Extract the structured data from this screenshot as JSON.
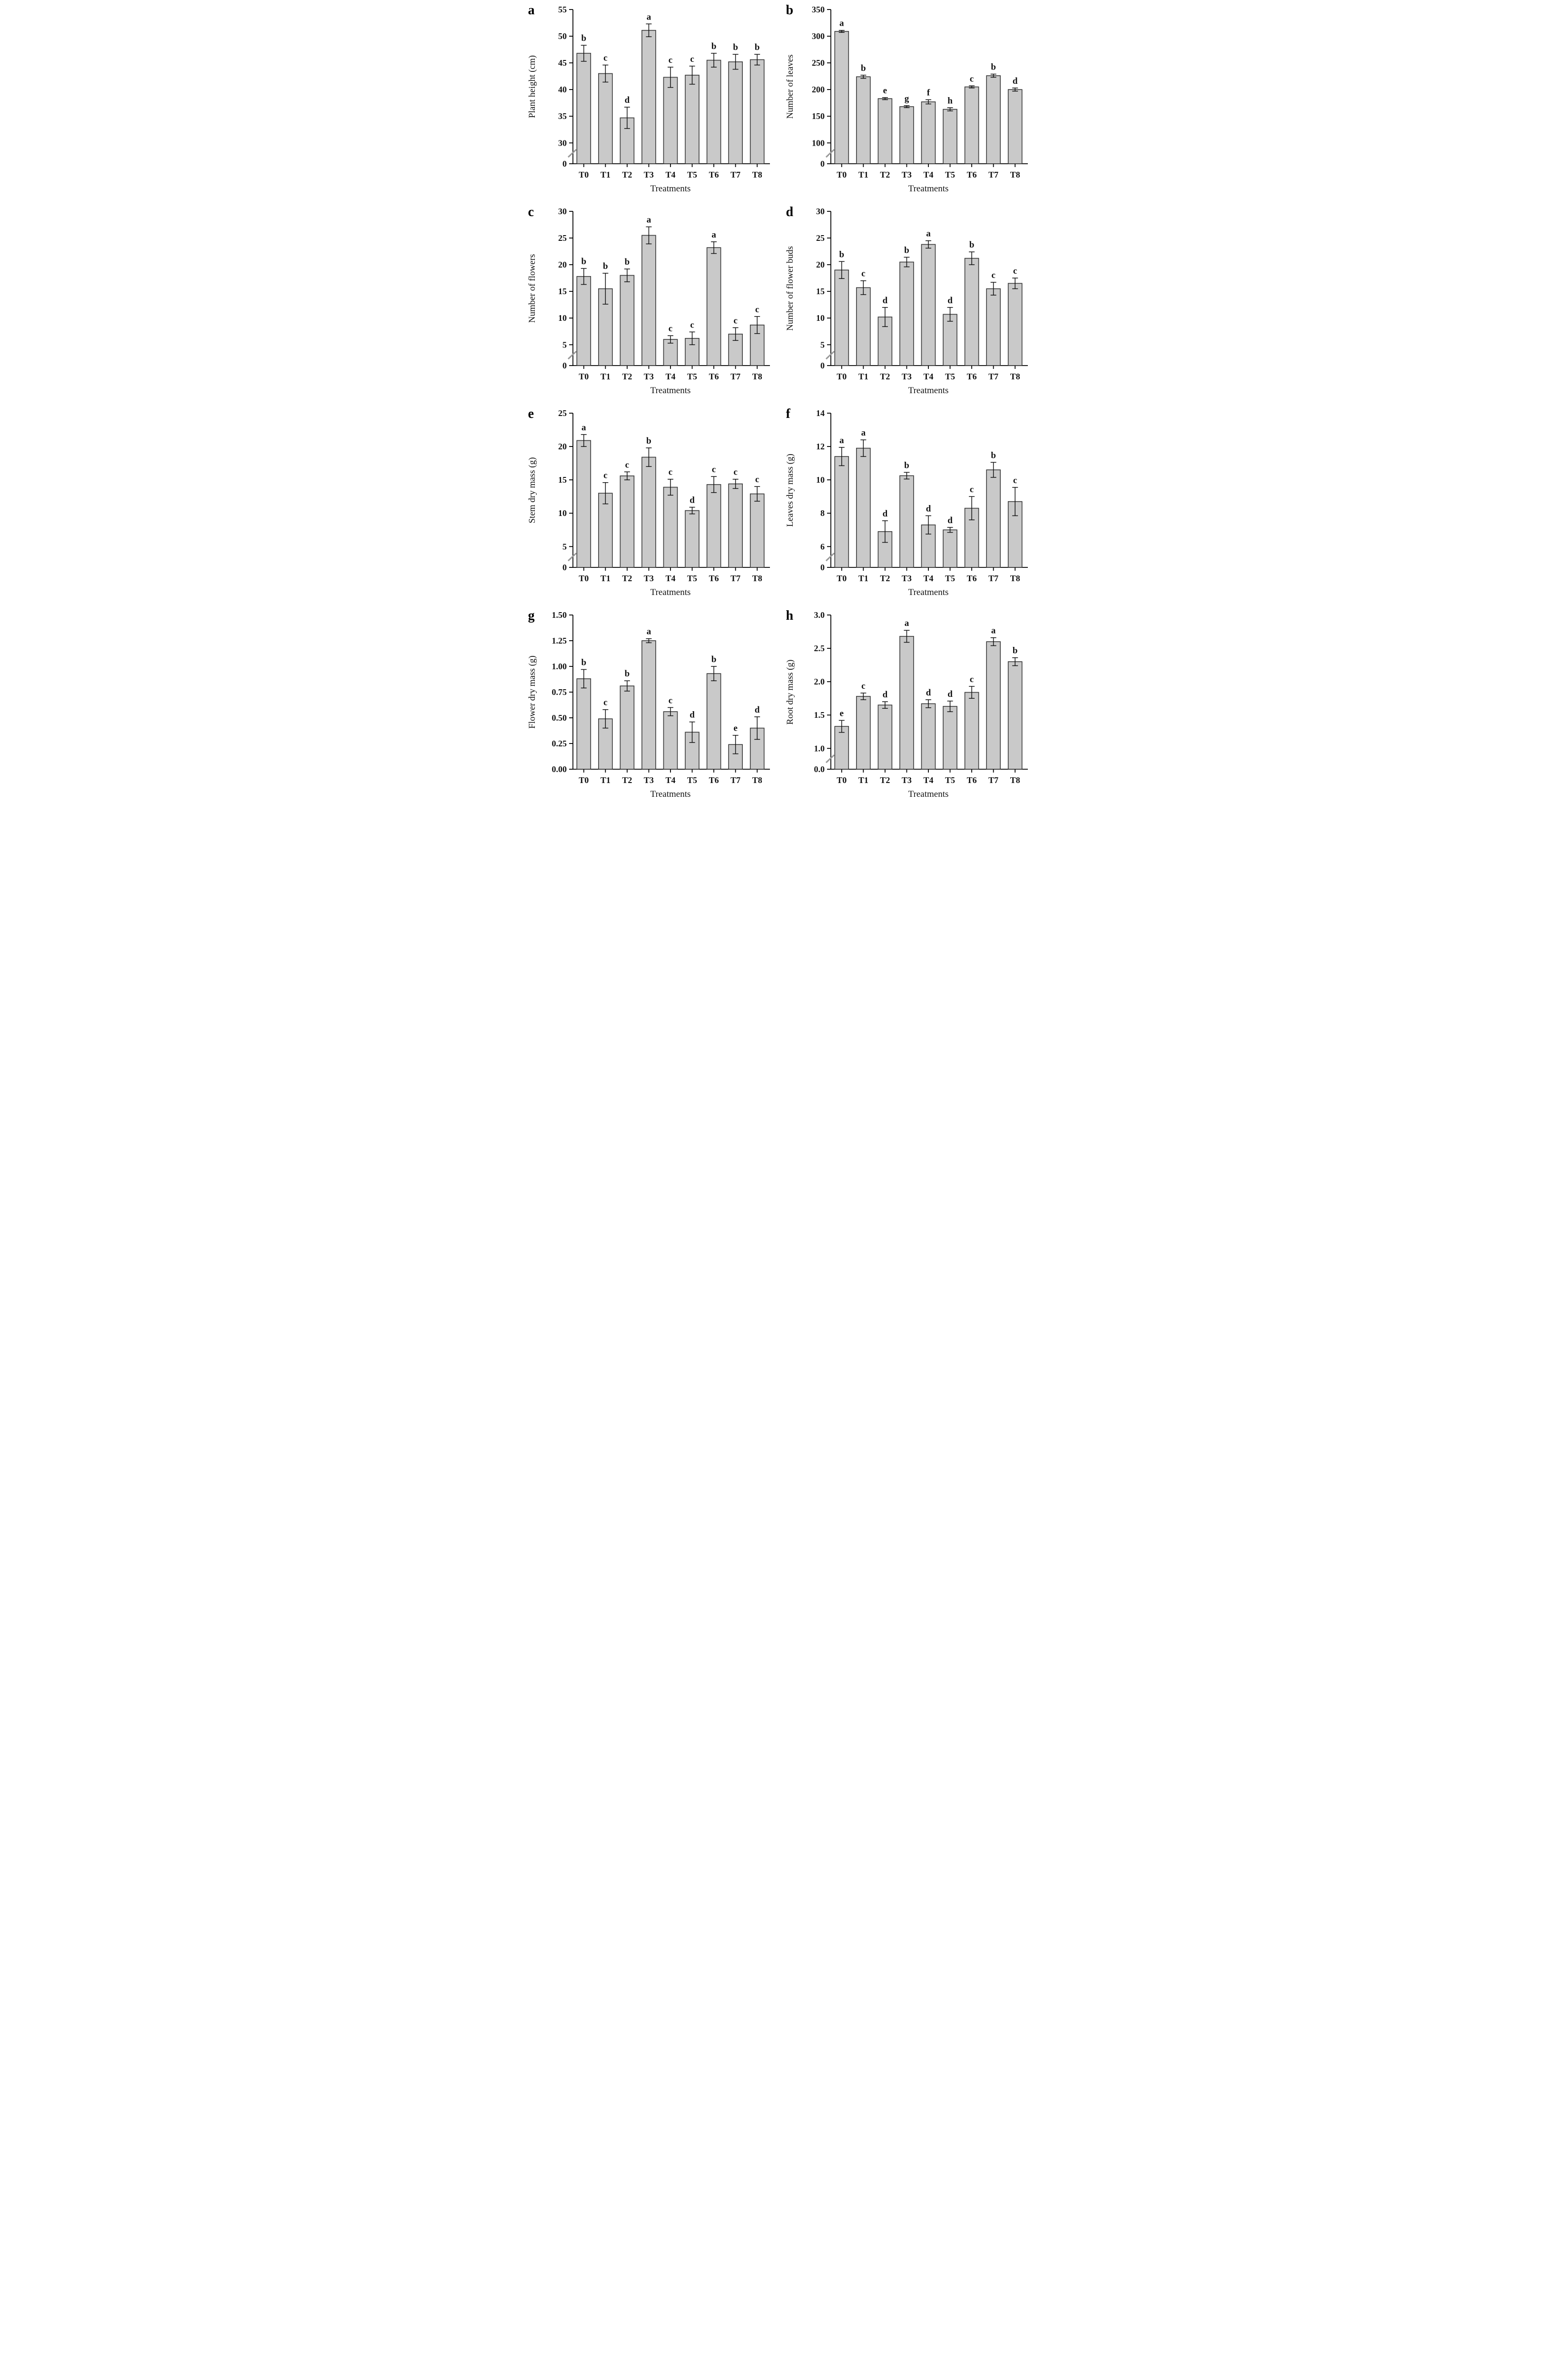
{
  "figure": {
    "background": "#ffffff",
    "bar_fill": "#c9c9c9",
    "bar_stroke": "#3a3a3a",
    "axis_color": "#000000",
    "break_mark_color": "#9a9a9a",
    "xlabel": "Treatments",
    "categories": [
      "T0",
      "T1",
      "T2",
      "T3",
      "T4",
      "T5",
      "T6",
      "T7",
      "T8"
    ]
  },
  "chart_data": [
    {
      "type": "bar",
      "panel_label": "a",
      "title": "",
      "ylabel": "Plant height (cm)",
      "xlabel": "Treatments",
      "categories": [
        "T0",
        "T1",
        "T2",
        "T3",
        "T4",
        "T5",
        "T6",
        "T7",
        "T8"
      ],
      "values": [
        46.8,
        43.0,
        34.7,
        51.1,
        42.3,
        42.7,
        45.5,
        45.2,
        45.6
      ],
      "errors": [
        1.5,
        1.6,
        2.0,
        1.2,
        1.9,
        1.7,
        1.3,
        1.4,
        1.0
      ],
      "sig_letters": [
        "b",
        "c",
        "d",
        "a",
        "c",
        "c",
        "b",
        "b",
        "b"
      ],
      "y_ticks": [
        0,
        30,
        35,
        40,
        45,
        50,
        55
      ],
      "y_tick_labels": [
        "0",
        "30",
        "35",
        "40",
        "45",
        "50",
        "55"
      ],
      "ylim": [
        0,
        55
      ],
      "axis_break": true,
      "grid": false,
      "legend": "none"
    },
    {
      "type": "bar",
      "panel_label": "b",
      "title": "",
      "ylabel": "Number of leaves",
      "xlabel": "Treatments",
      "categories": [
        "T0",
        "T1",
        "T2",
        "T3",
        "T4",
        "T5",
        "T6",
        "T7",
        "T8"
      ],
      "values": [
        309,
        224,
        183,
        168,
        177,
        163,
        205,
        226,
        200
      ],
      "errors": [
        2,
        3,
        2,
        2,
        4,
        3,
        2,
        3,
        3
      ],
      "sig_letters": [
        "a",
        "b",
        "e",
        "g",
        "f",
        "h",
        "c",
        "b",
        "d"
      ],
      "y_ticks": [
        0,
        100,
        150,
        200,
        250,
        300,
        350
      ],
      "y_tick_labels": [
        "0",
        "100",
        "150",
        "200",
        "250",
        "300",
        "350"
      ],
      "ylim": [
        0,
        350
      ],
      "axis_break": true,
      "grid": false,
      "legend": "none"
    },
    {
      "type": "bar",
      "panel_label": "c",
      "title": "",
      "ylabel": "Number of flowers",
      "xlabel": "Treatments",
      "categories": [
        "T0",
        "T1",
        "T2",
        "T3",
        "T4",
        "T5",
        "T6",
        "T7",
        "T8"
      ],
      "values": [
        17.8,
        15.5,
        18.0,
        25.5,
        6.0,
        6.2,
        23.2,
        7.0,
        8.7
      ],
      "errors": [
        1.5,
        2.9,
        1.2,
        1.6,
        0.7,
        1.2,
        1.1,
        1.2,
        1.6
      ],
      "sig_letters": [
        "b",
        "b",
        "b",
        "a",
        "c",
        "c",
        "a",
        "c",
        "c"
      ],
      "y_ticks": [
        0,
        5,
        10,
        15,
        20,
        25,
        30
      ],
      "y_tick_labels": [
        "0",
        "5",
        "10",
        "15",
        "20",
        "25",
        "30"
      ],
      "ylim": [
        0,
        30
      ],
      "axis_break": true,
      "grid": false,
      "legend": "none"
    },
    {
      "type": "bar",
      "panel_label": "d",
      "title": "",
      "ylabel": "Number of flower buds",
      "xlabel": "Treatments",
      "categories": [
        "T0",
        "T1",
        "T2",
        "T3",
        "T4",
        "T5",
        "T6",
        "T7",
        "T8"
      ],
      "values": [
        19.0,
        15.7,
        10.2,
        20.5,
        23.8,
        10.7,
        21.2,
        15.5,
        16.5
      ],
      "errors": [
        1.6,
        1.3,
        1.8,
        0.9,
        0.7,
        1.3,
        1.2,
        1.2,
        1.0
      ],
      "sig_letters": [
        "b",
        "c",
        "d",
        "b",
        "a",
        "d",
        "b",
        "c",
        "c"
      ],
      "y_ticks": [
        0,
        5,
        10,
        15,
        20,
        25,
        30
      ],
      "y_tick_labels": [
        "0",
        "5",
        "10",
        "15",
        "20",
        "25",
        "30"
      ],
      "ylim": [
        0,
        30
      ],
      "axis_break": true,
      "grid": false,
      "legend": "none"
    },
    {
      "type": "bar",
      "panel_label": "e",
      "title": "",
      "ylabel": "Stem dry mass (g)",
      "xlabel": "Treatments",
      "categories": [
        "T0",
        "T1",
        "T2",
        "T3",
        "T4",
        "T5",
        "T6",
        "T7",
        "T8"
      ],
      "values": [
        20.9,
        13.0,
        15.6,
        18.4,
        13.9,
        10.4,
        14.3,
        14.4,
        12.9
      ],
      "errors": [
        0.9,
        1.6,
        0.6,
        1.4,
        1.2,
        0.5,
        1.2,
        0.7,
        1.1
      ],
      "sig_letters": [
        "a",
        "c",
        "c",
        "b",
        "c",
        "d",
        "c",
        "c",
        "c"
      ],
      "y_ticks": [
        0,
        5,
        10,
        15,
        20,
        25
      ],
      "y_tick_labels": [
        "0",
        "5",
        "10",
        "15",
        "20",
        "25"
      ],
      "ylim": [
        0,
        25
      ],
      "axis_break": true,
      "grid": false,
      "legend": "none"
    },
    {
      "type": "bar",
      "panel_label": "f",
      "title": "",
      "ylabel": "Leaves dry mass (g)",
      "xlabel": "Treatments",
      "categories": [
        "T0",
        "T1",
        "T2",
        "T3",
        "T4",
        "T5",
        "T6",
        "T7",
        "T8"
      ],
      "values": [
        11.4,
        11.9,
        6.9,
        10.25,
        7.3,
        7.0,
        8.3,
        10.6,
        8.7
      ],
      "errors": [
        0.55,
        0.5,
        0.65,
        0.2,
        0.55,
        0.15,
        0.7,
        0.45,
        0.85
      ],
      "sig_letters": [
        "a",
        "a",
        "d",
        "b",
        "d",
        "d",
        "c",
        "b",
        "c"
      ],
      "y_ticks": [
        0,
        6,
        8,
        10,
        12,
        14
      ],
      "y_tick_labels": [
        "0",
        "6",
        "8",
        "10",
        "12",
        "14"
      ],
      "ylim": [
        0,
        14
      ],
      "axis_break": true,
      "grid": false,
      "legend": "none"
    },
    {
      "type": "bar",
      "panel_label": "g",
      "title": "",
      "ylabel": "Flower dry mass (g)",
      "xlabel": "Treatments",
      "categories": [
        "T0",
        "T1",
        "T2",
        "T3",
        "T4",
        "T5",
        "T6",
        "T7",
        "T8"
      ],
      "values": [
        0.88,
        0.49,
        0.81,
        1.25,
        0.56,
        0.36,
        0.93,
        0.24,
        0.4
      ],
      "errors": [
        0.09,
        0.09,
        0.05,
        0.02,
        0.04,
        0.1,
        0.07,
        0.09,
        0.11
      ],
      "sig_letters": [
        "b",
        "c",
        "b",
        "a",
        "c",
        "d",
        "b",
        "e",
        "d"
      ],
      "y_ticks": [
        0,
        0.25,
        0.5,
        0.75,
        1.0,
        1.25,
        1.5
      ],
      "y_tick_labels": [
        "0.00",
        "0.25",
        "0.50",
        "0.75",
        "1.00",
        "1.25",
        "1.50"
      ],
      "ylim": [
        0,
        1.5
      ],
      "axis_break": false,
      "grid": false,
      "legend": "none"
    },
    {
      "type": "bar",
      "panel_label": "h",
      "title": "",
      "ylabel": "Root dry mass (g)",
      "xlabel": "Treatments",
      "categories": [
        "T0",
        "T1",
        "T2",
        "T3",
        "T4",
        "T5",
        "T6",
        "T7",
        "T8"
      ],
      "values": [
        1.33,
        1.78,
        1.65,
        2.68,
        1.67,
        1.63,
        1.84,
        2.6,
        2.3
      ],
      "errors": [
        0.09,
        0.05,
        0.05,
        0.09,
        0.06,
        0.08,
        0.09,
        0.06,
        0.06
      ],
      "sig_letters": [
        "e",
        "c",
        "d",
        "a",
        "d",
        "d",
        "c",
        "a",
        "b"
      ],
      "y_ticks": [
        0,
        1.0,
        1.5,
        2.0,
        2.5,
        3.0
      ],
      "y_tick_labels": [
        "0.0",
        "1.0",
        "1.5",
        "2.0",
        "2.5",
        "3.0"
      ],
      "ylim": [
        0,
        3.0
      ],
      "axis_break": true,
      "grid": false,
      "legend": "none"
    }
  ]
}
